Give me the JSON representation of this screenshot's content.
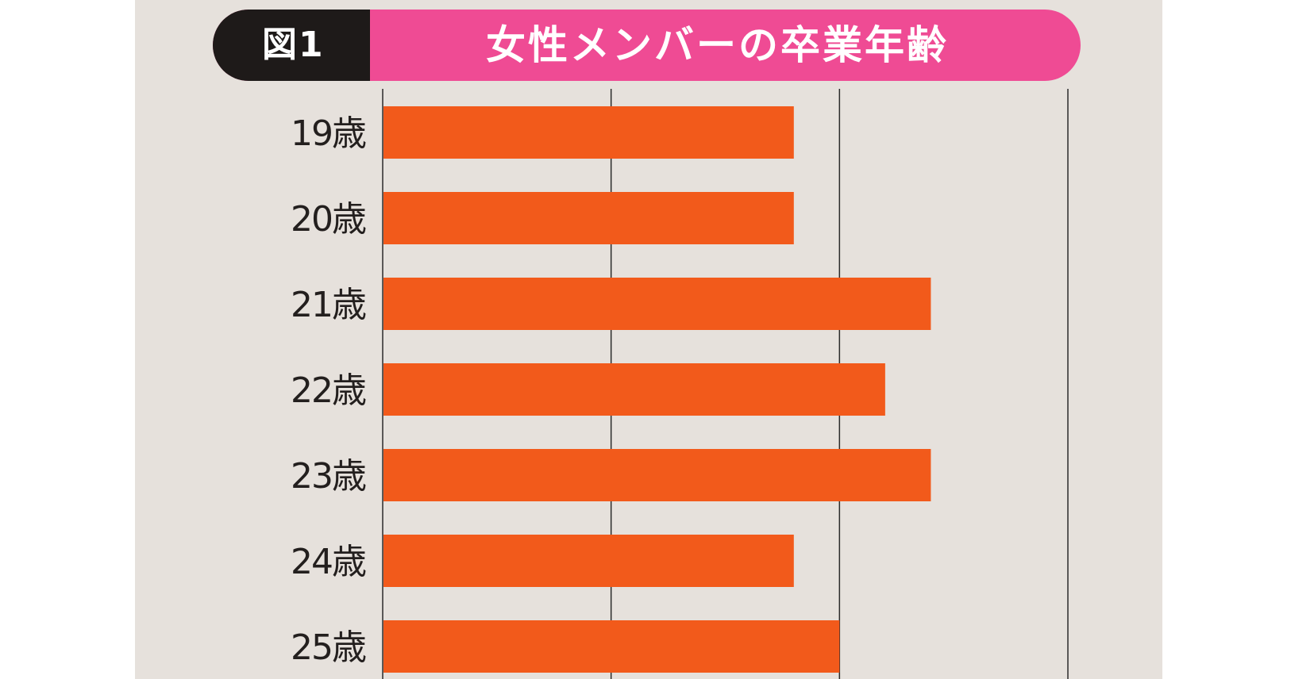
{
  "colors": {
    "background": "#e6e1dc",
    "bar": "#f25a1b",
    "title_pink": "#ef4b94",
    "title_dark": "#1e1a19",
    "gridline": "#2b2b2b",
    "label": "#231f1e"
  },
  "header": {
    "figure_label": "図1",
    "title": "女性メンバーの卒業年齢"
  },
  "chart_data": {
    "type": "bar",
    "orientation": "horizontal",
    "title": "女性メンバーの卒業年齢",
    "categories": [
      "19歳",
      "20歳",
      "21歳",
      "22歳",
      "23歳",
      "24歳",
      "25歳"
    ],
    "values": [
      9,
      9,
      12,
      11,
      12,
      9,
      10
    ],
    "xlim": [
      0,
      15
    ],
    "gridlines": [
      0,
      5,
      10,
      15
    ],
    "grid": true,
    "xlabel": "",
    "ylabel": "",
    "legend": "none"
  }
}
